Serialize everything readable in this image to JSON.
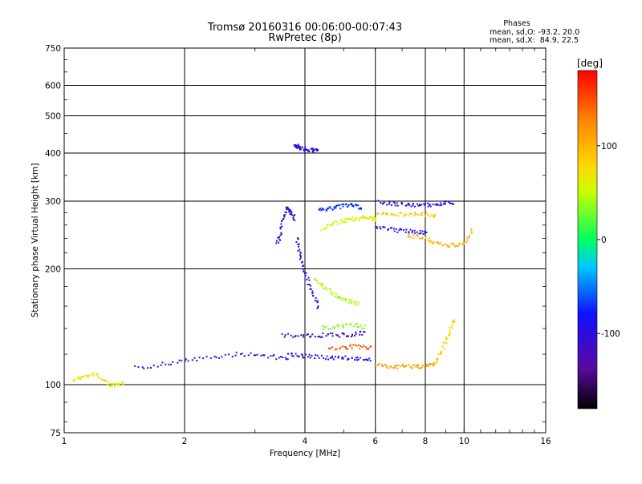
{
  "chart_data": {
    "type": "scatter",
    "title": "Tromsø 20160316 00:06:00-00:07:43",
    "subtitle": "RwPretec (8p)",
    "xlabel": "Frequency [MHz]",
    "ylabel": "Stationary phase Virtual Height [km]",
    "xscale": "log",
    "yscale": "log",
    "xlim": [
      1,
      16
    ],
    "ylim": [
      75,
      750
    ],
    "xticks": [
      1,
      2,
      4,
      6,
      8,
      10,
      16
    ],
    "xtick_labels": [
      "1",
      "2",
      "4",
      "6",
      "8",
      "10",
      "16"
    ],
    "yticks": [
      75,
      100,
      200,
      300,
      400,
      500,
      600,
      750
    ],
    "ytick_labels": [
      "75",
      "100",
      "200",
      "300",
      "400",
      "500",
      "600",
      "750"
    ],
    "grid": true,
    "info": {
      "heading": "Phases",
      "line1": "mean, sd,O: -93.2, 20.0",
      "line2": "mean, sd,X:  84.9, 22.5"
    },
    "colorbar": {
      "label": "[deg]",
      "range": [
        -180,
        180
      ],
      "ticks": [
        100,
        0,
        -100
      ],
      "tick_labels": [
        "100",
        "0",
        "-100"
      ],
      "colormap": "rainbow"
    },
    "series": [
      {
        "x": [
          1.05,
          1.1,
          1.15,
          1.2,
          1.25,
          1.3,
          1.35,
          1.4
        ],
        "y": [
          103,
          105,
          106,
          107,
          103,
          100,
          100,
          101
        ],
        "phase": 70
      },
      {
        "x": [
          1.5,
          1.7,
          1.9,
          2.1,
          2.4,
          2.7,
          3.0,
          3.3,
          3.6
        ],
        "y": [
          111,
          113,
          115,
          117,
          118,
          121,
          120,
          119,
          117
        ],
        "phase": -95
      },
      {
        "x": [
          3.4,
          3.45,
          3.5,
          3.55,
          3.6,
          3.65,
          3.7,
          3.75
        ],
        "y": [
          235,
          245,
          265,
          280,
          290,
          285,
          280,
          270
        ],
        "phase": -100
      },
      {
        "x": [
          3.75,
          3.8,
          3.85,
          3.9,
          4.0,
          4.1,
          4.2,
          4.3
        ],
        "y": [
          420,
          418,
          416,
          412,
          412,
          410,
          408,
          408
        ],
        "phase": -100
      },
      {
        "x": [
          3.8,
          3.85,
          3.9,
          4.0,
          4.1,
          4.2,
          4.3
        ],
        "y": [
          240,
          225,
          210,
          195,
          180,
          170,
          160
        ],
        "phase": -95
      },
      {
        "x": [
          3.5,
          3.8,
          4.1,
          4.4,
          4.7,
          5.0,
          5.3,
          5.6
        ],
        "y": [
          135,
          135,
          135,
          135,
          135,
          135,
          136,
          137
        ],
        "phase": -110
      },
      {
        "x": [
          3.6,
          3.8,
          4.0,
          4.3,
          4.6,
          4.9,
          5.2,
          5.5,
          5.8
        ],
        "y": [
          121,
          120,
          119,
          119,
          118,
          118,
          118,
          117,
          117
        ],
        "phase": -90
      },
      {
        "x": [
          4.4,
          4.6,
          4.8,
          5.0,
          5.2,
          5.4,
          5.6,
          5.8,
          6.0
        ],
        "y": [
          255,
          260,
          265,
          268,
          270,
          272,
          273,
          272,
          270
        ],
        "phase": 60
      },
      {
        "x": [
          4.3,
          4.5,
          4.7,
          4.9,
          5.1,
          5.3,
          5.5
        ],
        "y": [
          285,
          288,
          290,
          292,
          294,
          293,
          290
        ],
        "phase": -70
      },
      {
        "x": [
          4.2,
          4.4,
          4.6,
          4.8,
          5.0,
          5.2,
          5.4
        ],
        "y": [
          190,
          182,
          176,
          170,
          167,
          165,
          163
        ],
        "phase": 40
      },
      {
        "x": [
          4.4,
          4.7,
          5.0,
          5.3,
          5.6
        ],
        "y": [
          141,
          142,
          143,
          143,
          142
        ],
        "phase": 30
      },
      {
        "x": [
          4.6,
          4.9,
          5.2,
          5.5,
          5.8
        ],
        "y": [
          124,
          125,
          126,
          126,
          125
        ],
        "phase": 150
      },
      {
        "x": [
          6.0,
          6.3,
          6.6,
          6.9,
          7.2,
          7.5,
          7.8,
          8.1,
          8.4
        ],
        "y": [
          113,
          112,
          112,
          112,
          112,
          112,
          112,
          113,
          114
        ],
        "phase": 110
      },
      {
        "x": [
          8.4,
          8.6,
          8.8,
          9.0,
          9.2,
          9.4
        ],
        "y": [
          115,
          118,
          125,
          132,
          140,
          148
        ],
        "phase": 80
      },
      {
        "x": [
          6.1,
          6.5,
          6.9,
          7.3,
          7.7,
          8.1,
          8.5,
          8.9,
          9.3
        ],
        "y": [
          300,
          298,
          296,
          295,
          294,
          295,
          296,
          298,
          299
        ],
        "phase": -95
      },
      {
        "x": [
          6.0,
          6.4,
          6.8,
          7.2,
          7.6,
          8.0,
          8.4
        ],
        "y": [
          280,
          280,
          279,
          279,
          279,
          278,
          277
        ],
        "phase": 90
      },
      {
        "x": [
          7.2,
          7.6,
          8.0,
          8.4,
          8.8,
          9.2,
          9.6,
          10.0,
          10.4
        ],
        "y": [
          245,
          244,
          240,
          235,
          232,
          231,
          232,
          236,
          252
        ],
        "phase": 100
      },
      {
        "x": [
          6.0,
          6.4,
          6.8,
          7.2,
          7.6,
          8.0
        ],
        "y": [
          258,
          255,
          253,
          252,
          251,
          250
        ],
        "phase": -90
      }
    ]
  }
}
